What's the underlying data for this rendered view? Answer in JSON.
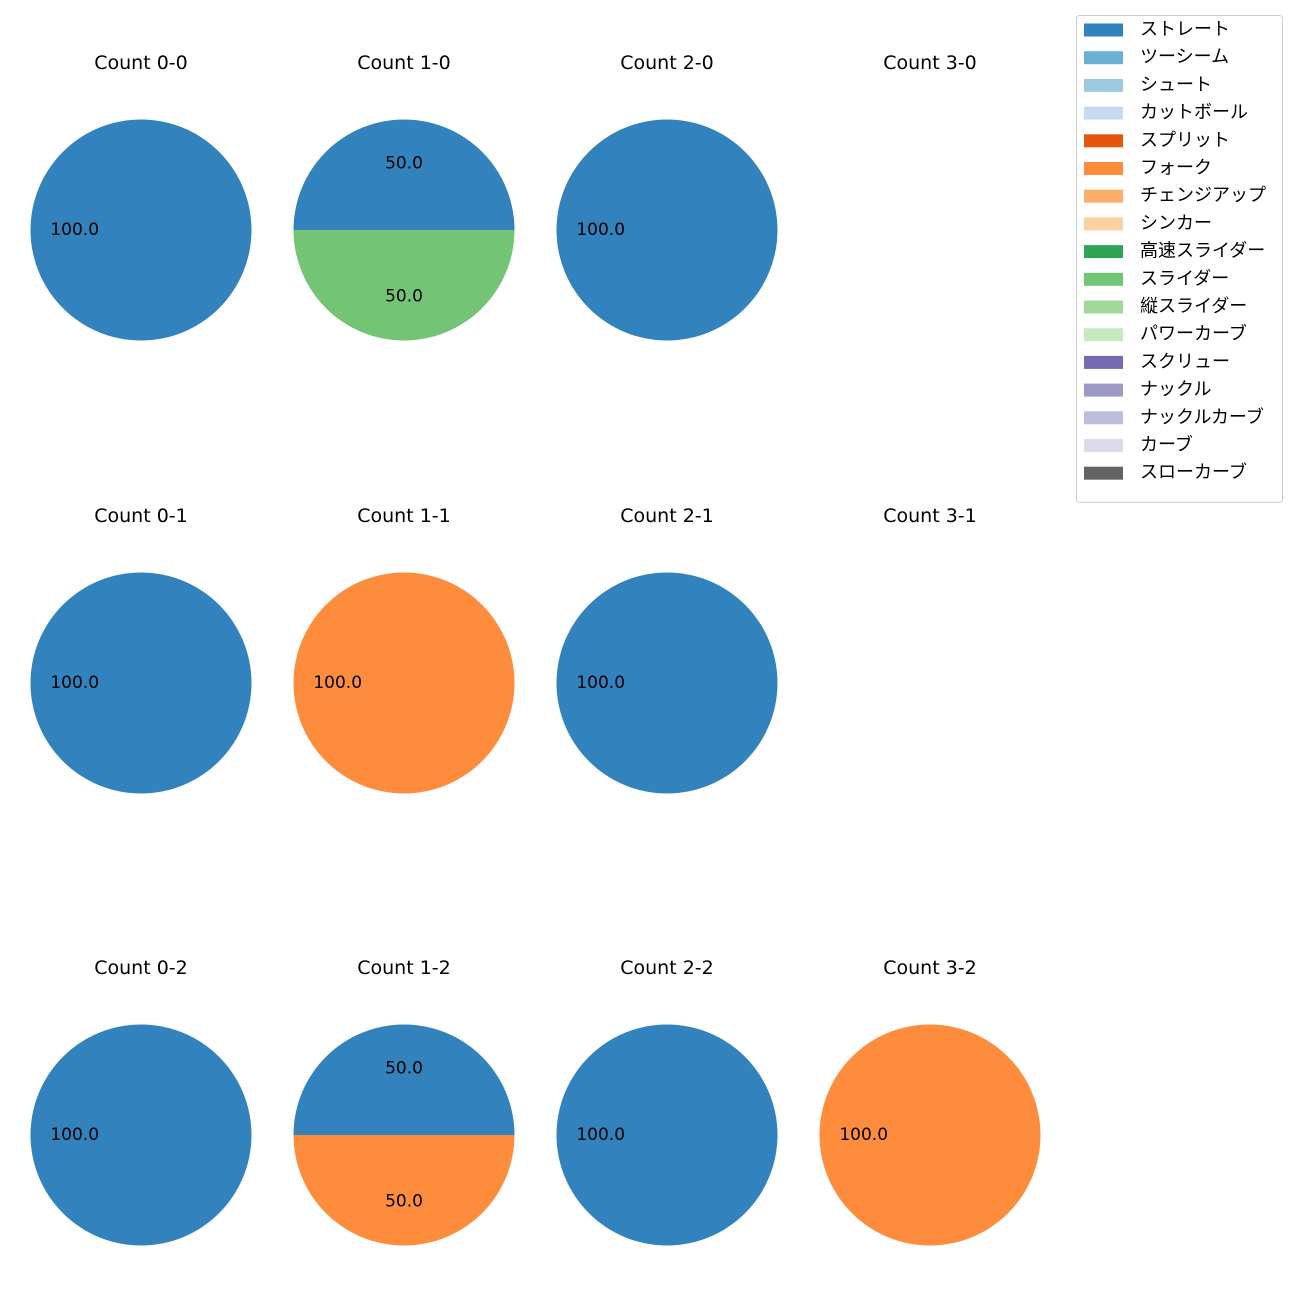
{
  "chart_data": {
    "type": "pie",
    "legend": {
      "placement": "top-right",
      "entries": [
        {
          "label": "ストレート",
          "color": "#3182bd"
        },
        {
          "label": "ツーシーム",
          "color": "#6baed6"
        },
        {
          "label": "シュート",
          "color": "#9ecae1"
        },
        {
          "label": "カットボール",
          "color": "#c6dbef"
        },
        {
          "label": "スプリット",
          "color": "#e6550d"
        },
        {
          "label": "フォーク",
          "color": "#fd8d3c"
        },
        {
          "label": "チェンジアップ",
          "color": "#fdae6b"
        },
        {
          "label": "シンカー",
          "color": "#fdd0a2"
        },
        {
          "label": "高速スライダー",
          "color": "#31a354"
        },
        {
          "label": "スライダー",
          "color": "#74c476"
        },
        {
          "label": "縦スライダー",
          "color": "#a1d99b"
        },
        {
          "label": "パワーカーブ",
          "color": "#c7e9c0"
        },
        {
          "label": "スクリュー",
          "color": "#756bb1"
        },
        {
          "label": "ナックル",
          "color": "#9e9ac8"
        },
        {
          "label": "ナックルカーブ",
          "color": "#bcbddc"
        },
        {
          "label": "カーブ",
          "color": "#dadaeb"
        },
        {
          "label": "スローカーブ",
          "color": "#636363"
        }
      ]
    },
    "panels": [
      {
        "title": "Count 0-0",
        "slices": [
          {
            "pitch": "ストレート",
            "value": 100.0,
            "label": "100.0"
          }
        ]
      },
      {
        "title": "Count 1-0",
        "slices": [
          {
            "pitch": "ストレート",
            "value": 50.0,
            "label": "50.0"
          },
          {
            "pitch": "スライダー",
            "value": 50.0,
            "label": "50.0"
          }
        ]
      },
      {
        "title": "Count 2-0",
        "slices": [
          {
            "pitch": "ストレート",
            "value": 100.0,
            "label": "100.0"
          }
        ]
      },
      {
        "title": "Count 3-0",
        "slices": []
      },
      {
        "title": "Count 0-1",
        "slices": [
          {
            "pitch": "ストレート",
            "value": 100.0,
            "label": "100.0"
          }
        ]
      },
      {
        "title": "Count 1-1",
        "slices": [
          {
            "pitch": "フォーク",
            "value": 100.0,
            "label": "100.0"
          }
        ]
      },
      {
        "title": "Count 2-1",
        "slices": [
          {
            "pitch": "ストレート",
            "value": 100.0,
            "label": "100.0"
          }
        ]
      },
      {
        "title": "Count 3-1",
        "slices": []
      },
      {
        "title": "Count 0-2",
        "slices": [
          {
            "pitch": "ストレート",
            "value": 100.0,
            "label": "100.0"
          }
        ]
      },
      {
        "title": "Count 1-2",
        "slices": [
          {
            "pitch": "ストレート",
            "value": 50.0,
            "label": "50.0"
          },
          {
            "pitch": "フォーク",
            "value": 50.0,
            "label": "50.0"
          }
        ]
      },
      {
        "title": "Count 2-2",
        "slices": [
          {
            "pitch": "ストレート",
            "value": 100.0,
            "label": "100.0"
          }
        ]
      },
      {
        "title": "Count 3-2",
        "slices": [
          {
            "pitch": "フォーク",
            "value": 100.0,
            "label": "100.0"
          }
        ]
      }
    ]
  }
}
